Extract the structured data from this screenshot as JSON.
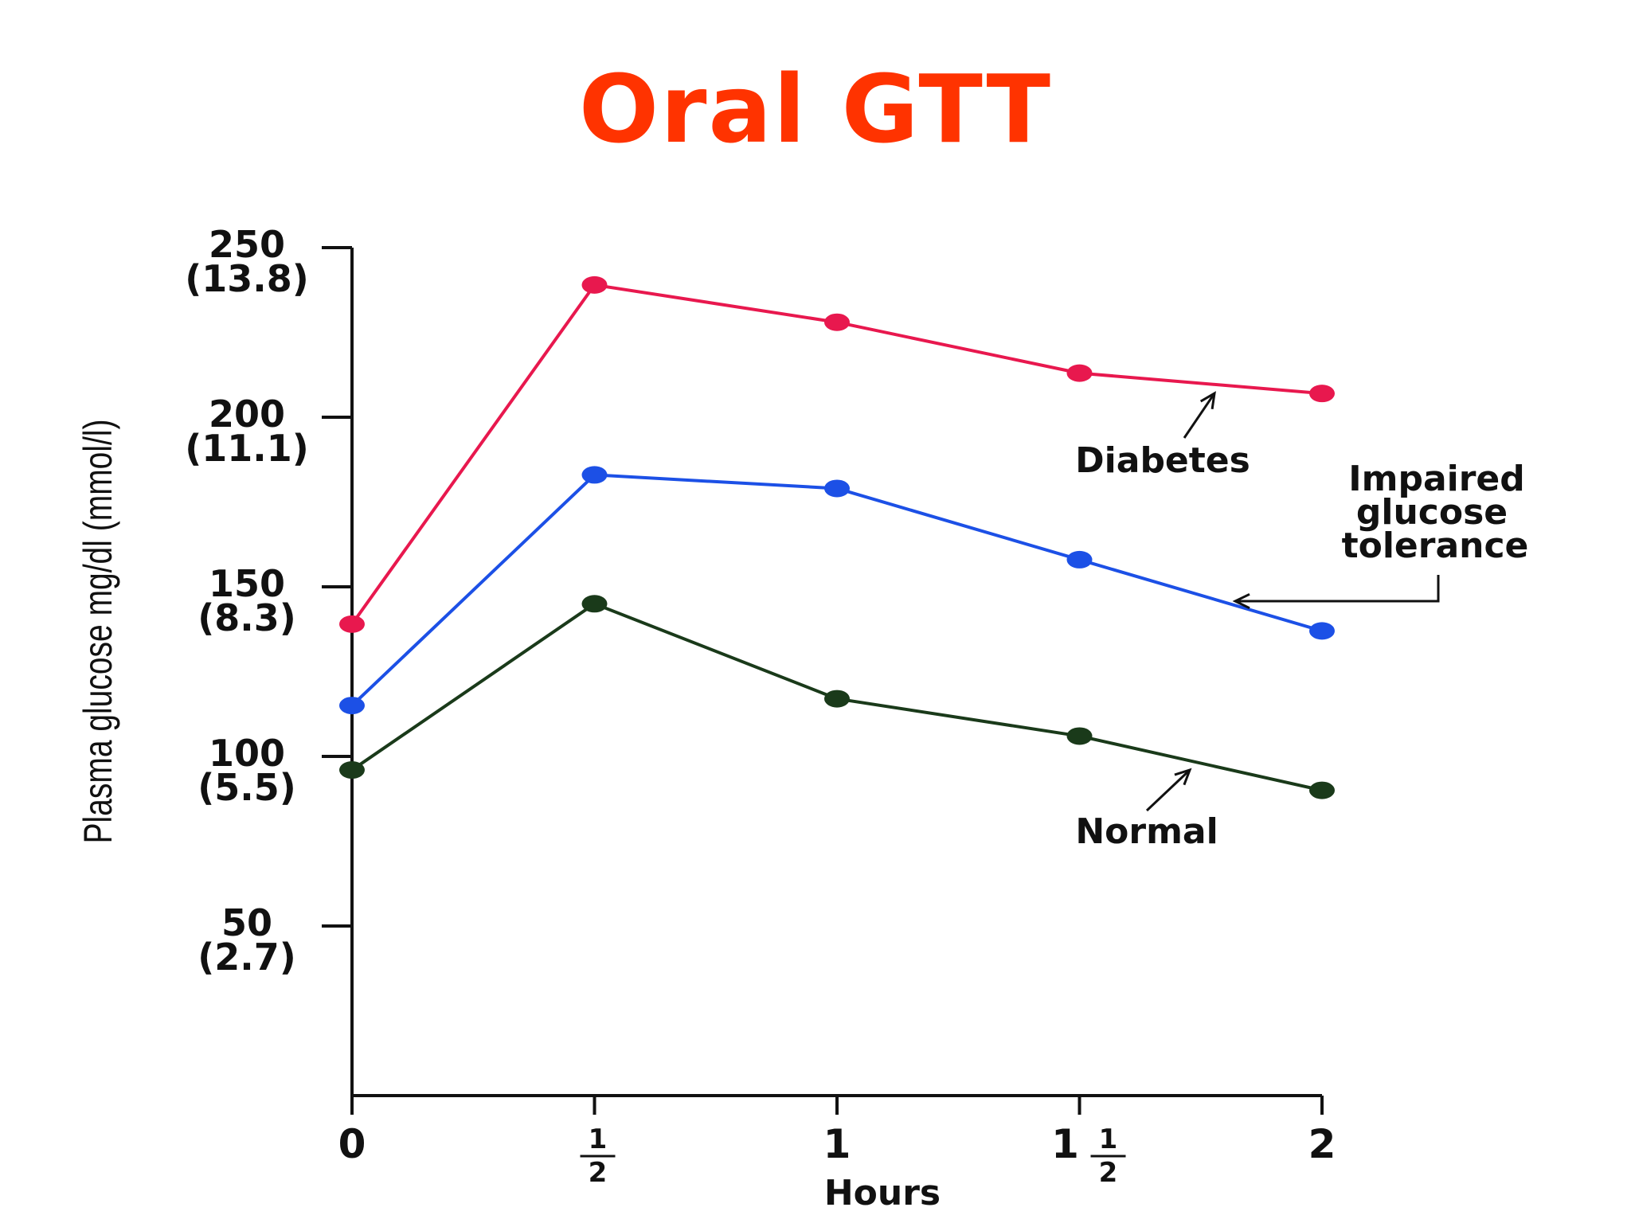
{
  "title": "Oral GTT",
  "colors": {
    "title": "#ff3300",
    "axis": "#111111",
    "diabetes": "#e8184e",
    "impaired": "#1c50e6",
    "normal": "#1a3a1a"
  },
  "chart_data": {
    "type": "line",
    "title": "Oral GTT",
    "xlabel": "Hours",
    "ylabel": "Plasma glucose mg/dl (mmol/l)",
    "x": [
      0,
      0.5,
      1,
      1.5,
      2
    ],
    "x_tick_labels": [
      {
        "whole": "0",
        "num": "",
        "den": ""
      },
      {
        "whole": "",
        "num": "1",
        "den": "2"
      },
      {
        "whole": "1",
        "num": "",
        "den": ""
      },
      {
        "whole": "1",
        "num": "1",
        "den": "2"
      },
      {
        "whole": "2",
        "num": "",
        "den": ""
      }
    ],
    "y_ticks": [
      {
        "value": 50,
        "label": "50",
        "sub": "(2.7)"
      },
      {
        "value": 100,
        "label": "100",
        "sub": "(5.5)"
      },
      {
        "value": 150,
        "label": "150",
        "sub": "(8.3)"
      },
      {
        "value": 200,
        "label": "200",
        "sub": "(11.1)"
      },
      {
        "value": 250,
        "label": "250",
        "sub": "(13.8)"
      }
    ],
    "xlim": [
      0,
      2
    ],
    "ylim": [
      0,
      250
    ],
    "grid": false,
    "series": [
      {
        "name": "Diabetes",
        "color_key": "diabetes",
        "values": [
          139,
          239,
          228,
          213,
          207
        ]
      },
      {
        "name": "Impaired glucose tolerance",
        "color_key": "impaired",
        "values": [
          115,
          183,
          179,
          158,
          137
        ]
      },
      {
        "name": "Normal",
        "color_key": "normal",
        "values": [
          96,
          145,
          117,
          106,
          90
        ]
      }
    ],
    "annotations": [
      {
        "text": "Diabetes",
        "series": "Diabetes"
      },
      {
        "text": "Impaired glucose tolerance",
        "series": "Impaired glucose tolerance"
      },
      {
        "text": "Normal",
        "series": "Normal"
      }
    ]
  }
}
